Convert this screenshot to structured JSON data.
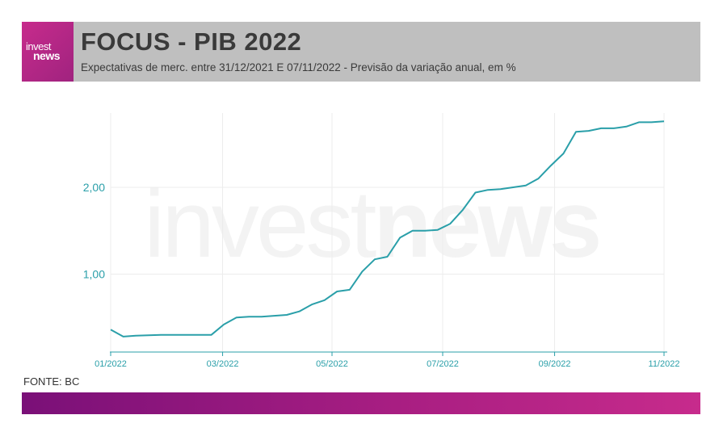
{
  "brand": {
    "logo_line1": "invest",
    "logo_line2": "news",
    "watermark_a": "invest",
    "watermark_b": "news"
  },
  "header": {
    "title": "FOCUS - PIB 2022",
    "subtitle": "Expectativas de merc. entre 31/12/2021 E 07/11/2022 - Previsão da variação anual, em %"
  },
  "source": "FONTE: BC",
  "colors": {
    "line": "#2a9fa9",
    "grid": "#ececec",
    "axis": "#2a9fa9"
  },
  "chart_data": {
    "type": "line",
    "title": "FOCUS - PIB 2022",
    "xlabel": "",
    "ylabel": "",
    "xlim": [
      0,
      44
    ],
    "ylim": [
      0,
      2.8
    ],
    "xticks": [
      {
        "x": 0,
        "label": "01/2022"
      },
      {
        "x": 8.9,
        "label": "03/2022"
      },
      {
        "x": 17.6,
        "label": "05/2022"
      },
      {
        "x": 26.4,
        "label": "07/2022"
      },
      {
        "x": 35.3,
        "label": "09/2022"
      },
      {
        "x": 44,
        "label": "11/2022"
      }
    ],
    "yticks": [
      {
        "y": 1.0,
        "label": "1,00"
      },
      {
        "y": 2.0,
        "label": "2,00"
      }
    ],
    "grid": true,
    "series": [
      {
        "x": [
          0,
          1,
          2,
          3,
          4,
          5,
          6,
          7,
          8,
          9,
          10,
          11,
          12,
          13,
          14,
          15,
          16,
          17,
          18,
          19,
          20,
          21,
          22,
          23,
          24,
          25,
          26,
          27,
          28,
          29,
          30,
          31,
          32,
          33,
          34,
          35,
          36,
          37,
          38,
          39,
          40,
          41,
          42,
          43,
          44
        ],
        "values": [
          0.36,
          0.28,
          0.29,
          0.295,
          0.3,
          0.3,
          0.3,
          0.3,
          0.3,
          0.42,
          0.5,
          0.51,
          0.51,
          0.52,
          0.53,
          0.57,
          0.65,
          0.7,
          0.8,
          0.82,
          1.03,
          1.17,
          1.2,
          1.42,
          1.5,
          1.5,
          1.51,
          1.58,
          1.74,
          1.94,
          1.97,
          1.98,
          2.0,
          2.02,
          2.1,
          2.25,
          2.39,
          2.64,
          2.65,
          2.68,
          2.68,
          2.7,
          2.75,
          2.75,
          2.76
        ]
      }
    ]
  }
}
